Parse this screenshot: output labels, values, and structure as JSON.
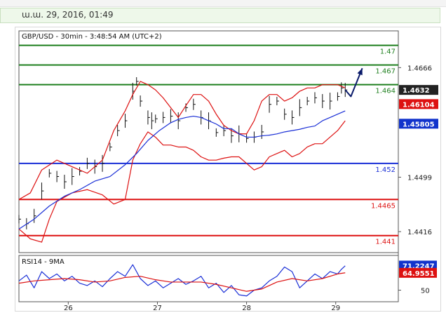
{
  "header": {
    "date_label": "ա.ա. 29, 2016, 01:49"
  },
  "chart_data": [
    {
      "type": "line",
      "title": "GBP/USD - 30min - 3:48:54 AM (UTC+2)",
      "y_ticks": [
        1.4666,
        1.4499,
        1.4416
      ],
      "y_tick_labels": [
        "1.4666",
        "1.4499",
        "1.4416"
      ],
      "price_tags": [
        {
          "label": "1.4632",
          "value": 1.4632,
          "color": "#222222"
        },
        {
          "label": "1.46104",
          "value": 1.46104,
          "color": "#dd1111"
        },
        {
          "label": "1.45805",
          "value": 1.45805,
          "color": "#1133cc"
        }
      ],
      "levels": [
        {
          "label": "1.47",
          "value": 1.47,
          "color": "#1e7f1e"
        },
        {
          "label": "1.467",
          "value": 1.467,
          "color": "#1e7f1e"
        },
        {
          "label": "1.464",
          "value": 1.464,
          "color": "#1e7f1e"
        },
        {
          "label": "1.452",
          "value": 1.452,
          "color": "#1a2fd6"
        },
        {
          "label": "1.4465",
          "value": 1.4465,
          "color": "#dd1111"
        },
        {
          "label": "1.441",
          "value": 1.441,
          "color": "#dd1111"
        }
      ],
      "x_labels": [
        "26",
        "27",
        "28",
        "29"
      ],
      "x_label_positions": [
        13,
        36.5,
        60,
        83.5
      ],
      "x_range": [
        0,
        100
      ],
      "ylim": [
        1.4384,
        1.4722
      ],
      "series": [
        {
          "role": "price",
          "color": "#111111",
          "style": "bars",
          "x": [
            0,
            2,
            4,
            6,
            8,
            10,
            12,
            14,
            16,
            18,
            20,
            22,
            24,
            26,
            28,
            30,
            31,
            32,
            34,
            35,
            36,
            38,
            40,
            42,
            44,
            46,
            48,
            50,
            52,
            54,
            56,
            58,
            60,
            62,
            64,
            66,
            68,
            70,
            72,
            74,
            76,
            78,
            80,
            82,
            84,
            85,
            86
          ],
          "y": [
            1.4435,
            1.4428,
            1.444,
            1.4478,
            1.4505,
            1.45,
            1.4492,
            1.45,
            1.4508,
            1.452,
            1.4515,
            1.452,
            1.4545,
            1.457,
            1.4585,
            1.463,
            1.4645,
            1.4615,
            1.459,
            1.4585,
            1.4588,
            1.459,
            1.4592,
            1.4585,
            1.4605,
            1.461,
            1.459,
            1.4585,
            1.4567,
            1.457,
            1.4562,
            1.4565,
            1.4558,
            1.456,
            1.4568,
            1.461,
            1.4615,
            1.4595,
            1.459,
            1.4605,
            1.4615,
            1.462,
            1.4615,
            1.4615,
            1.4622,
            1.4635,
            1.4632
          ]
        },
        {
          "role": "bollinger upper",
          "color": "#dd1111",
          "x": [
            0,
            3,
            6,
            10,
            14,
            18,
            22,
            25,
            28,
            30,
            32,
            34,
            36,
            38,
            40,
            42,
            44,
            46,
            48,
            50,
            52,
            54,
            56,
            58,
            60,
            62,
            64,
            66,
            68,
            70,
            72,
            74,
            76,
            78,
            80,
            82,
            84,
            86
          ],
          "y": [
            1.4465,
            1.4475,
            1.451,
            1.4525,
            1.4515,
            1.4505,
            1.4525,
            1.457,
            1.46,
            1.4625,
            1.4645,
            1.464,
            1.4632,
            1.462,
            1.4605,
            1.459,
            1.4608,
            1.4625,
            1.4625,
            1.4615,
            1.4595,
            1.4578,
            1.457,
            1.4565,
            1.4565,
            1.4585,
            1.4615,
            1.4625,
            1.4625,
            1.4615,
            1.462,
            1.463,
            1.4635,
            1.4635,
            1.464,
            1.464,
            1.464,
            1.4635
          ]
        },
        {
          "role": "bollinger lower",
          "color": "#dd1111",
          "x": [
            0,
            3,
            6,
            8,
            10,
            14,
            18,
            22,
            25,
            28,
            30,
            32,
            34,
            36,
            38,
            40,
            42,
            44,
            46,
            48,
            50,
            52,
            54,
            56,
            58,
            60,
            62,
            64,
            66,
            68,
            70,
            72,
            74,
            76,
            78,
            80,
            82,
            84,
            86
          ],
          "y": [
            1.442,
            1.4405,
            1.44,
            1.4435,
            1.4462,
            1.4475,
            1.448,
            1.4472,
            1.4458,
            1.4465,
            1.4525,
            1.455,
            1.4568,
            1.456,
            1.4548,
            1.4548,
            1.4545,
            1.4545,
            1.454,
            1.453,
            1.4525,
            1.4525,
            1.4528,
            1.453,
            1.453,
            1.452,
            1.451,
            1.4515,
            1.453,
            1.4535,
            1.454,
            1.453,
            1.4535,
            1.4545,
            1.455,
            1.455,
            1.456,
            1.457,
            1.4585
          ]
        },
        {
          "role": "moving average",
          "color": "#1a2fd6",
          "x": [
            0,
            4,
            8,
            12,
            16,
            20,
            24,
            28,
            31,
            34,
            37,
            40,
            42,
            44,
            46,
            48,
            50,
            52,
            54,
            56,
            58,
            60,
            62,
            64,
            66,
            68,
            70,
            72,
            74,
            76,
            78,
            80,
            82,
            84,
            86
          ],
          "y": [
            1.442,
            1.4435,
            1.4455,
            1.447,
            1.448,
            1.4493,
            1.45,
            1.4518,
            1.4535,
            1.4555,
            1.457,
            1.4582,
            1.4587,
            1.459,
            1.4592,
            1.459,
            1.4585,
            1.458,
            1.4573,
            1.4573,
            1.4565,
            1.456,
            1.456,
            1.4562,
            1.4563,
            1.4565,
            1.4568,
            1.457,
            1.4572,
            1.4575,
            1.4577,
            1.4585,
            1.459,
            1.4595,
            1.46
          ]
        },
        {
          "role": "forecast arrow",
          "color": "#0a1a6a",
          "x": [
            86,
            87.5,
            90.5
          ],
          "y": [
            1.4632,
            1.4622,
            1.4665
          ]
        }
      ]
    },
    {
      "type": "line",
      "title": "RSI14 - 9MA",
      "y_ticks": [
        50
      ],
      "y_tick_labels": [
        "50"
      ],
      "ylim": [
        40,
        80
      ],
      "price_tags": [
        {
          "label": "71.2247",
          "value": 71.2247,
          "color": "#1133cc"
        },
        {
          "label": "64.9551",
          "value": 64.9551,
          "color": "#dd1111"
        }
      ],
      "series": [
        {
          "role": "RSI14",
          "color": "#1a2fd6",
          "x": [
            0,
            2,
            4,
            6,
            8,
            10,
            12,
            14,
            16,
            18,
            20,
            22,
            24,
            26,
            28,
            30,
            32,
            34,
            36,
            38,
            40,
            42,
            44,
            46,
            48,
            50,
            52,
            54,
            56,
            58,
            60,
            62,
            64,
            66,
            68,
            70,
            72,
            74,
            76,
            78,
            80,
            82,
            84,
            85,
            86
          ],
          "y": [
            58,
            63,
            52,
            66,
            60,
            64,
            58,
            62,
            56,
            54,
            58,
            53,
            60,
            66,
            62,
            72,
            60,
            54,
            58,
            52,
            56,
            60,
            55,
            58,
            62,
            52,
            56,
            48,
            54,
            46,
            45,
            50,
            52,
            58,
            62,
            70,
            66,
            52,
            58,
            64,
            60,
            66,
            64,
            68,
            71
          ]
        },
        {
          "role": "9MA",
          "color": "#dd1111",
          "x": [
            0,
            4,
            8,
            12,
            16,
            20,
            24,
            28,
            32,
            36,
            40,
            44,
            48,
            52,
            56,
            60,
            64,
            68,
            72,
            76,
            80,
            84,
            86
          ],
          "y": [
            56,
            58,
            59,
            60,
            59,
            57,
            58,
            61,
            62,
            59,
            57,
            57,
            57,
            55,
            52,
            49,
            51,
            57,
            60,
            58,
            60,
            64,
            65
          ]
        }
      ]
    }
  ]
}
